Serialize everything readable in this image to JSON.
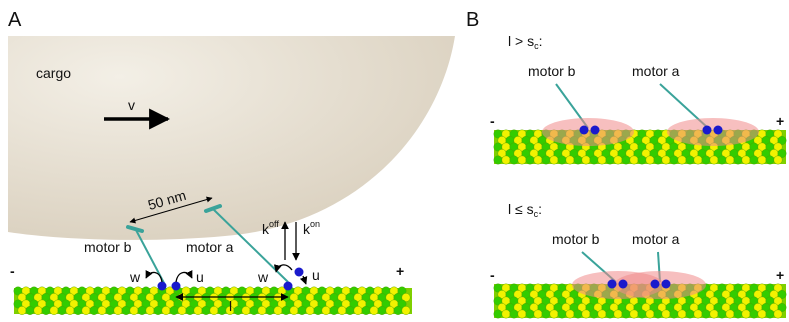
{
  "panel_a": {
    "letter": "A",
    "cargo_label": "cargo",
    "velocity_label": "v",
    "distance_label": "50 nm",
    "motor_b_label": "motor b",
    "motor_a_label": "motor a",
    "rate_off_label": "k",
    "rate_off_sup": "off",
    "rate_on_label": "k",
    "rate_on_sup": "on",
    "step_back_label": "w",
    "step_forward_label": "u",
    "spacing_label": "l",
    "minus_end_label": "-",
    "plus_end_label": "+"
  },
  "panel_b": {
    "letter": "B",
    "top_condition": "l > s",
    "top_condition_sub": "c",
    "top_condition_tail": ":",
    "bottom_condition": "l ≤ s",
    "bottom_condition_sub": "c",
    "bottom_condition_tail": ":",
    "motor_b_label": "motor b",
    "motor_a_label": "motor a",
    "minus_end_label": "-",
    "plus_end_label": "+"
  },
  "colors": {
    "cargo": "#e6dfd1",
    "microtubule_green": "#33cc00",
    "microtubule_yellow": "#f2f200",
    "motor_stalk": "#3aa39a",
    "motor_head": "#1a1acc",
    "interaction_zone": "#f08a8a"
  }
}
